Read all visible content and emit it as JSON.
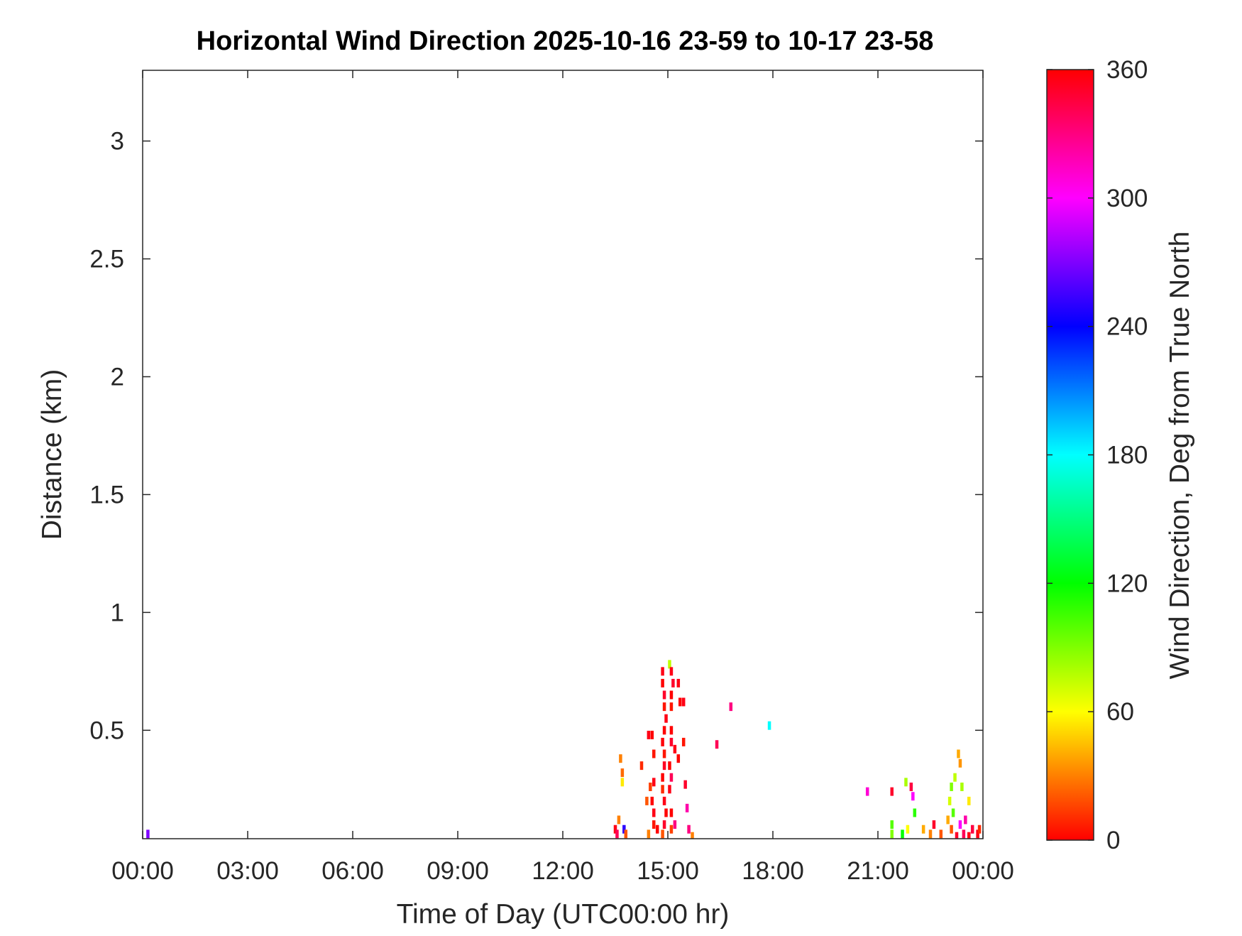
{
  "chart_data": {
    "type": "heatmap",
    "title": "Horizontal Wind Direction 2025-10-16 23-59 to 10-17 23-58",
    "x_label": "Time of Day (UTC00:00 hr)",
    "y_label": "Distance (km)",
    "colorbar_label": "Wind Direction, Deg from True North",
    "colormap": "hsv",
    "xlim": [
      0,
      24
    ],
    "ylim": [
      0.04,
      3.3
    ],
    "clim": [
      0,
      360
    ],
    "xticks": [
      {
        "value": 0,
        "label": "00:00"
      },
      {
        "value": 3,
        "label": "03:00"
      },
      {
        "value": 6,
        "label": "06:00"
      },
      {
        "value": 9,
        "label": "09:00"
      },
      {
        "value": 12,
        "label": "12:00"
      },
      {
        "value": 15,
        "label": "15:00"
      },
      {
        "value": 18,
        "label": "18:00"
      },
      {
        "value": 21,
        "label": "21:00"
      },
      {
        "value": 24,
        "label": "00:00"
      }
    ],
    "yticks": [
      0.5,
      1,
      1.5,
      2,
      2.5,
      3
    ],
    "cticks": [
      0,
      60,
      120,
      180,
      240,
      300,
      360
    ],
    "x": [
      0.15,
      14.85,
      14.85,
      14.9,
      14.9,
      14.95,
      14.9,
      14.85,
      14.9,
      14.9,
      14.85,
      14.85,
      14.9,
      14.95,
      14.9,
      14.85,
      15.05,
      15.1,
      15.15,
      15.1,
      15.1,
      15.3,
      15.35,
      15.45,
      15.1,
      15.1,
      15.2,
      15.3,
      15.45,
      15.05,
      15.1,
      15.05,
      15.5,
      15.1,
      15.1,
      15.2,
      15.55,
      15.6,
      15.7,
      14.45,
      14.55,
      14.6,
      14.6,
      14.5,
      14.55,
      14.4,
      14.6,
      14.6,
      14.45,
      14.7,
      14.25,
      13.65,
      13.7,
      13.7,
      13.5,
      13.6,
      13.75,
      13.8,
      13.55,
      16.4,
      16.8,
      17.9,
      20.7,
      21.4,
      21.8,
      21.95,
      22.0,
      21.4,
      21.4,
      21.7,
      21.85,
      22.05,
      22.3,
      22.5,
      22.6,
      22.8,
      23.1,
      23.05,
      23.15,
      23.0,
      23.1,
      23.25,
      23.35,
      23.45,
      23.6,
      23.6,
      23.5,
      23.7,
      23.3,
      23.35,
      23.4,
      23.85,
      23.9,
      23.2
    ],
    "y": [
      0.06,
      0.75,
      0.7,
      0.65,
      0.6,
      0.55,
      0.5,
      0.45,
      0.4,
      0.35,
      0.3,
      0.25,
      0.2,
      0.15,
      0.1,
      0.06,
      0.78,
      0.75,
      0.7,
      0.65,
      0.6,
      0.7,
      0.62,
      0.62,
      0.5,
      0.45,
      0.42,
      0.38,
      0.45,
      0.35,
      0.3,
      0.25,
      0.27,
      0.15,
      0.08,
      0.1,
      0.17,
      0.08,
      0.05,
      0.48,
      0.48,
      0.4,
      0.28,
      0.26,
      0.2,
      0.2,
      0.15,
      0.1,
      0.06,
      0.08,
      0.35,
      0.38,
      0.32,
      0.28,
      0.08,
      0.12,
      0.08,
      0.06,
      0.06,
      0.44,
      0.6,
      0.52,
      0.24,
      0.24,
      0.28,
      0.26,
      0.22,
      0.1,
      0.06,
      0.06,
      0.08,
      0.15,
      0.08,
      0.06,
      0.1,
      0.06,
      0.26,
      0.2,
      0.15,
      0.12,
      0.08,
      0.05,
      0.1,
      0.06,
      0.05,
      0.2,
      0.12,
      0.08,
      0.4,
      0.36,
      0.26,
      0.06,
      0.08,
      0.3
    ],
    "values": [
      270,
      355,
      0,
      350,
      5,
      355,
      0,
      358,
      5,
      352,
      0,
      10,
      355,
      0,
      350,
      20,
      75,
      355,
      350,
      0,
      5,
      355,
      0,
      355,
      0,
      350,
      355,
      0,
      5,
      0,
      340,
      355,
      350,
      0,
      15,
      330,
      320,
      330,
      30,
      355,
      0,
      5,
      355,
      15,
      0,
      20,
      355,
      5,
      30,
      0,
      10,
      30,
      25,
      55,
      355,
      30,
      250,
      20,
      340,
      340,
      330,
      180,
      310,
      350,
      80,
      345,
      300,
      100,
      90,
      120,
      60,
      110,
      40,
      30,
      350,
      20,
      90,
      70,
      100,
      40,
      20,
      350,
      300,
      340,
      355,
      55,
      320,
      345,
      40,
      35,
      80,
      355,
      10,
      75
    ]
  }
}
